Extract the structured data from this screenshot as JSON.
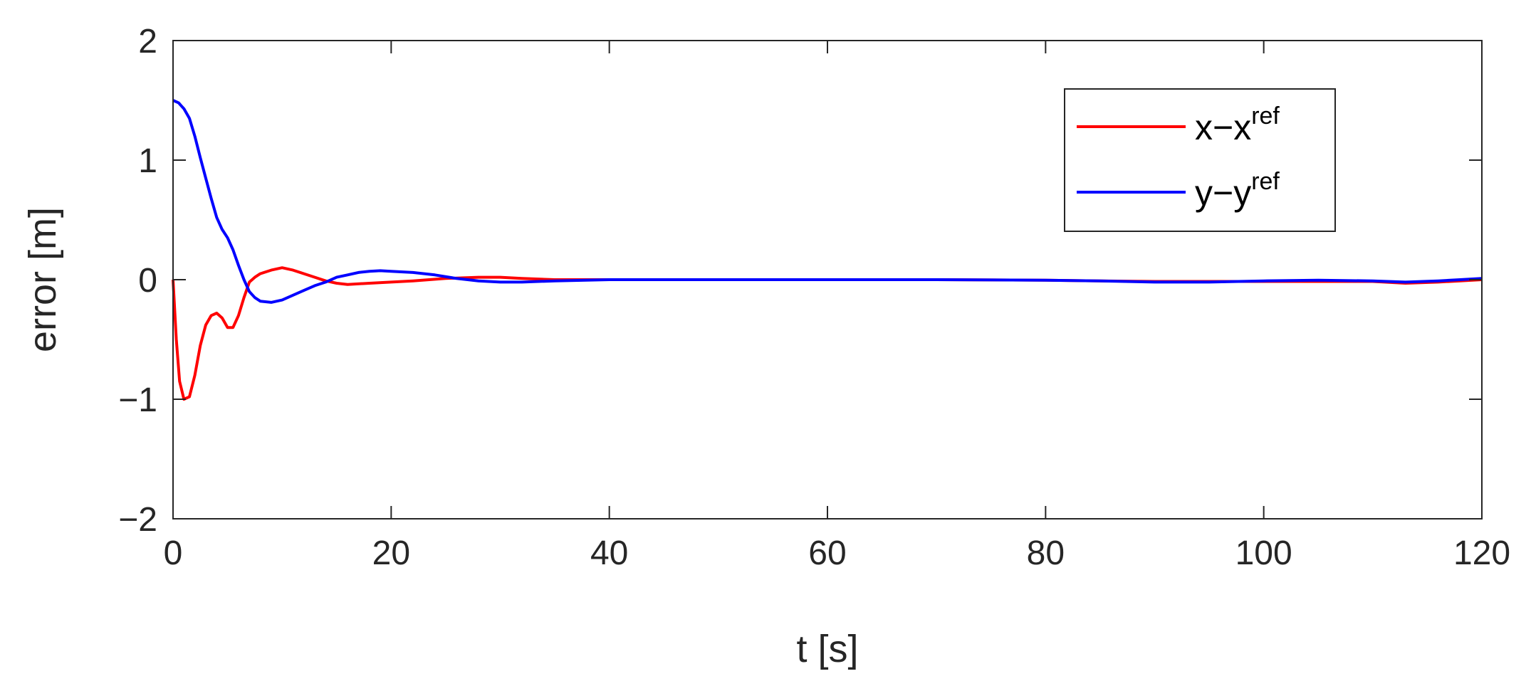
{
  "chart_data": {
    "type": "line",
    "xlabel": "t [s]",
    "ylabel": "error [m]",
    "xlim": [
      0,
      120
    ],
    "ylim": [
      -2,
      2
    ],
    "xticks": [
      0,
      20,
      40,
      60,
      80,
      100,
      120
    ],
    "yticks": [
      2,
      1,
      0,
      -1,
      -2
    ],
    "ytick_labels": [
      "2",
      "1",
      "0",
      "−1",
      "−2"
    ],
    "grid": false,
    "legend_position": "top-right",
    "series": [
      {
        "name": "x−x",
        "name_sup": "ref",
        "color": "#ff0000",
        "x": [
          0,
          0.3,
          0.6,
          1.0,
          1.5,
          2.0,
          2.5,
          3.0,
          3.5,
          4.0,
          4.5,
          5.0,
          5.5,
          6.0,
          6.5,
          7.0,
          7.5,
          8.0,
          9.0,
          10.0,
          11.0,
          12.0,
          13.0,
          14.0,
          15.0,
          16.0,
          18.0,
          20.0,
          22.0,
          25.0,
          28.0,
          30.0,
          32.0,
          35.0,
          38.0,
          40.0,
          50.0,
          60.0,
          70.0,
          80.0,
          85.0,
          90.0,
          95.0,
          100.0,
          105.0,
          110.0,
          113.0,
          116.0,
          118.0,
          120.0
        ],
        "y": [
          0,
          -0.5,
          -0.85,
          -1.0,
          -0.98,
          -0.8,
          -0.55,
          -0.38,
          -0.3,
          -0.28,
          -0.32,
          -0.4,
          -0.4,
          -0.3,
          -0.15,
          -0.02,
          0.02,
          0.05,
          0.08,
          0.1,
          0.08,
          0.05,
          0.02,
          -0.01,
          -0.03,
          -0.04,
          -0.03,
          -0.02,
          -0.01,
          0.01,
          0.02,
          0.02,
          0.01,
          0.0,
          0.0,
          0.0,
          0.0,
          0.0,
          0.0,
          -0.005,
          -0.01,
          -0.015,
          -0.015,
          -0.015,
          -0.015,
          -0.015,
          -0.03,
          -0.02,
          -0.01,
          0.0
        ]
      },
      {
        "name": "y−y",
        "name_sup": "ref",
        "color": "#0000ff",
        "x": [
          0,
          0.5,
          1.0,
          1.5,
          2.0,
          2.5,
          3.0,
          3.5,
          4.0,
          4.5,
          5.0,
          5.5,
          6.0,
          6.5,
          7.0,
          7.5,
          8.0,
          9.0,
          10.0,
          11.0,
          12.0,
          13.0,
          14.0,
          15.0,
          16.0,
          17.0,
          18.0,
          19.0,
          20.0,
          22.0,
          24.0,
          26.0,
          28.0,
          30.0,
          32.0,
          35.0,
          40.0,
          50.0,
          60.0,
          70.0,
          80.0,
          85.0,
          90.0,
          95.0,
          100.0,
          105.0,
          110.0,
          113.0,
          116.0,
          118.0,
          120.0
        ],
        "y": [
          1.5,
          1.48,
          1.43,
          1.35,
          1.2,
          1.02,
          0.85,
          0.68,
          0.52,
          0.42,
          0.35,
          0.25,
          0.12,
          0.0,
          -0.1,
          -0.15,
          -0.18,
          -0.19,
          -0.17,
          -0.13,
          -0.09,
          -0.05,
          -0.02,
          0.02,
          0.04,
          0.06,
          0.07,
          0.075,
          0.07,
          0.06,
          0.04,
          0.01,
          -0.01,
          -0.02,
          -0.02,
          -0.01,
          0.0,
          0.0,
          0.0,
          0.0,
          -0.005,
          -0.01,
          -0.02,
          -0.02,
          -0.01,
          -0.005,
          -0.01,
          -0.02,
          -0.01,
          0.0,
          0.01
        ]
      }
    ]
  }
}
